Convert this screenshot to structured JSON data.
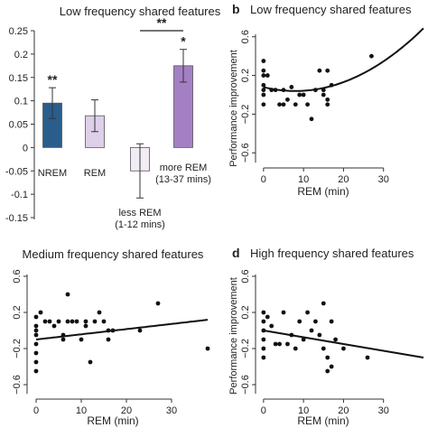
{
  "panels": {
    "a": {
      "title": "Low frequency shared features",
      "y_ticks": [
        "0.25",
        "0.2",
        "0.15",
        "0.1",
        "0.05",
        "0",
        "-0.05",
        "-0.1",
        "-0.15"
      ],
      "bar_labels": [
        {
          "lines": [
            "NREM"
          ]
        },
        {
          "lines": [
            "REM"
          ]
        },
        {
          "lines": [
            "less REM",
            "(1-12 mins)"
          ]
        },
        {
          "lines": [
            "more REM",
            "(13-37 mins)"
          ]
        }
      ],
      "sig": {
        "bar0": "**",
        "bar3": "*",
        "bracket": "**"
      }
    },
    "b": {
      "letter": "b",
      "title": "Low frequency shared features",
      "ylabel": "Performance improvement",
      "xlabel": "REM (min)"
    },
    "c": {
      "title": "Medium frequency shared features",
      "xlabel": "REM (min)"
    },
    "d": {
      "letter": "d",
      "title": "High frequency shared features",
      "ylabel": "Performance improvement",
      "xlabel": "REM (min)"
    }
  },
  "chart_data": [
    {
      "type": "bar",
      "title": "Low frequency shared features",
      "categories": [
        "NREM",
        "REM",
        "less REM (1-12 mins)",
        "more REM (13-37 mins)"
      ],
      "values": [
        0.095,
        0.068,
        -0.05,
        0.175
      ],
      "errors": [
        0.033,
        0.034,
        0.058,
        0.035
      ],
      "colors": [
        "#2a5d8c",
        "#ddd0e8",
        "#f2ecf4",
        "#a47fc4"
      ],
      "ylim": [
        -0.15,
        0.25
      ],
      "significance": [
        "**",
        "",
        "",
        "*"
      ],
      "bracket": {
        "between": [
          2,
          3
        ],
        "label": "**"
      }
    },
    {
      "type": "scatter",
      "title": "Low frequency shared features",
      "xlabel": "REM (min)",
      "ylabel": "Performance improvement",
      "xlim": [
        -2,
        40
      ],
      "ylim": [
        -0.7,
        0.7
      ],
      "x_ticks": [
        0,
        10,
        20,
        30
      ],
      "y_ticks": [
        -0.6,
        -0.2,
        0.2,
        0.6
      ],
      "points": [
        [
          0,
          0.35
        ],
        [
          0,
          0.25
        ],
        [
          0,
          0.2
        ],
        [
          0,
          0.1
        ],
        [
          0,
          0.05
        ],
        [
          0,
          0.0
        ],
        [
          0,
          -0.1
        ],
        [
          1,
          0.2
        ],
        [
          2,
          0.05
        ],
        [
          3,
          0.05
        ],
        [
          4,
          -0.1
        ],
        [
          5,
          0.05
        ],
        [
          5,
          -0.1
        ],
        [
          6,
          -0.05
        ],
        [
          7,
          0.08
        ],
        [
          8,
          -0.1
        ],
        [
          9,
          0.0
        ],
        [
          10,
          0.0
        ],
        [
          11,
          -0.1
        ],
        [
          12,
          -0.25
        ],
        [
          13,
          0.05
        ],
        [
          14,
          0.25
        ],
        [
          15,
          0.05
        ],
        [
          15,
          0.0
        ],
        [
          16,
          -0.05
        ],
        [
          16,
          -0.1
        ],
        [
          16,
          0.25
        ],
        [
          17,
          0.1
        ],
        [
          27,
          0.4
        ]
      ],
      "fit": {
        "kind": "quadratic",
        "coef": [
          0.079,
          -0.01,
          0.00063
        ]
      }
    },
    {
      "type": "scatter",
      "title": "Medium frequency shared features",
      "xlabel": "REM (min)",
      "xlim": [
        -2,
        38
      ],
      "ylim": [
        -0.7,
        0.7
      ],
      "x_ticks": [
        0,
        10,
        20,
        30
      ],
      "y_ticks": [
        -0.6,
        -0.2,
        0.2,
        0.6
      ],
      "points": [
        [
          0,
          0.15
        ],
        [
          0,
          0.05
        ],
        [
          0,
          0.0
        ],
        [
          0,
          -0.05
        ],
        [
          0,
          -0.15
        ],
        [
          0,
          -0.25
        ],
        [
          0,
          -0.35
        ],
        [
          0,
          -0.45
        ],
        [
          1,
          0.2
        ],
        [
          2,
          0.1
        ],
        [
          3,
          0.1
        ],
        [
          4,
          0.05
        ],
        [
          5,
          0.1
        ],
        [
          6,
          -0.05
        ],
        [
          6,
          -0.1
        ],
        [
          7,
          0.4
        ],
        [
          7,
          0.1
        ],
        [
          8,
          0.1
        ],
        [
          9,
          0.1
        ],
        [
          10,
          -0.1
        ],
        [
          11,
          0.1
        ],
        [
          11,
          0.05
        ],
        [
          12,
          -0.35
        ],
        [
          13,
          0.1
        ],
        [
          14,
          0.2
        ],
        [
          15,
          0.1
        ],
        [
          16,
          0.0
        ],
        [
          17,
          0.0
        ],
        [
          16,
          -0.1
        ],
        [
          23,
          0.0
        ],
        [
          27,
          0.3
        ],
        [
          38,
          -0.2
        ]
      ],
      "fit": {
        "kind": "linear",
        "coef": [
          -0.1,
          0.00575
        ]
      }
    },
    {
      "type": "scatter",
      "title": "High frequency shared features",
      "xlabel": "REM (min)",
      "ylabel": "Performance improvement",
      "xlim": [
        -2,
        40
      ],
      "ylim": [
        -0.7,
        0.7
      ],
      "x_ticks": [
        0,
        10,
        20,
        30
      ],
      "y_ticks": [
        -0.6,
        -0.2,
        0.2,
        0.6
      ],
      "points": [
        [
          0,
          0.2
        ],
        [
          0,
          0.1
        ],
        [
          0,
          0.0
        ],
        [
          0,
          -0.1
        ],
        [
          0,
          -0.2
        ],
        [
          0,
          -0.3
        ],
        [
          1,
          0.15
        ],
        [
          2,
          0.05
        ],
        [
          3,
          -0.15
        ],
        [
          4,
          -0.15
        ],
        [
          5,
          0.2
        ],
        [
          6,
          -0.15
        ],
        [
          7,
          -0.05
        ],
        [
          8,
          -0.2
        ],
        [
          9,
          0.1
        ],
        [
          10,
          -0.1
        ],
        [
          11,
          0.2
        ],
        [
          12,
          0.0
        ],
        [
          13,
          0.1
        ],
        [
          14,
          -0.05
        ],
        [
          15,
          0.3
        ],
        [
          15,
          -0.2
        ],
        [
          16,
          -0.3
        ],
        [
          16,
          -0.45
        ],
        [
          17,
          -0.4
        ],
        [
          17,
          0.1
        ],
        [
          18,
          -0.1
        ],
        [
          20,
          -0.2
        ],
        [
          26,
          -0.3
        ]
      ],
      "fit": {
        "kind": "linear",
        "coef": [
          0.0,
          -0.0075
        ]
      }
    }
  ]
}
